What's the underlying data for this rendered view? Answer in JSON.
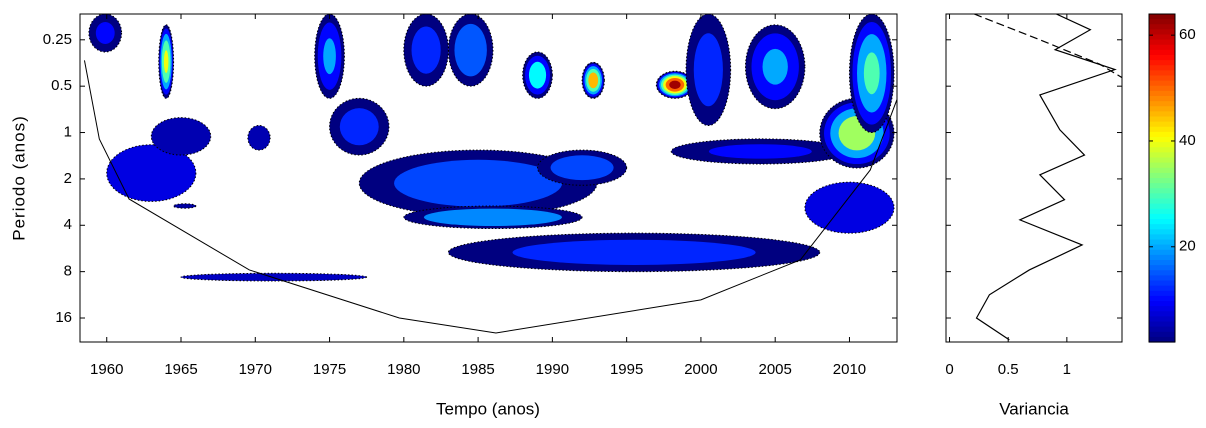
{
  "chart_data": [
    {
      "type": "wavelet",
      "xlabel": "Tempo (anos)",
      "ylabel": "Periodo (anos)",
      "xlim": [
        1958.2,
        2013.2
      ],
      "xticks": [
        1960,
        1965,
        1970,
        1975,
        1980,
        1985,
        1990,
        1995,
        2000,
        2005,
        2010
      ],
      "ylim": [
        0.17,
        22.9
      ],
      "yticks": [
        0.25,
        0.5,
        1,
        2,
        4,
        8,
        16
      ],
      "yscale": "log2",
      "colormap": "jet",
      "clim": [
        2,
        64
      ],
      "cticks": [
        20,
        40,
        60
      ],
      "levels": [
        2,
        10,
        20,
        30,
        40,
        50,
        60
      ],
      "patches": [
        {
          "x": [
            1960,
            1966
          ],
          "y": [
            1.2,
            2.8
          ],
          "value": 8
        },
        {
          "x": [
            1963,
            1967
          ],
          "y": [
            0.8,
            1.4
          ],
          "value": 5
        },
        {
          "x": [
            1969.5,
            1971
          ],
          "y": [
            0.9,
            1.3
          ],
          "value": 5
        },
        {
          "x": [
            1965,
            1977.5
          ],
          "y": [
            8.2,
            9.2
          ],
          "value": 6
        },
        {
          "x": [
            1964.5,
            1966
          ],
          "y": [
            2.9,
            3.1
          ],
          "value": 4
        },
        {
          "x": [
            1975,
            1979
          ],
          "y": [
            0.6,
            1.4
          ],
          "value": 12
        },
        {
          "x": [
            1977,
            1993
          ],
          "y": [
            1.3,
            3.5
          ],
          "value": 14
        },
        {
          "x": [
            1980,
            1992
          ],
          "y": [
            3,
            4.2
          ],
          "value": 18
        },
        {
          "x": [
            1983,
            2008
          ],
          "y": [
            4.5,
            8
          ],
          "value": 12
        },
        {
          "x": [
            1989,
            1995
          ],
          "y": [
            1.3,
            2.2
          ],
          "value": 14
        },
        {
          "x": [
            1998,
            2010
          ],
          "y": [
            1.1,
            1.6
          ],
          "value": 10
        },
        {
          "x": [
            2007,
            2013
          ],
          "y": [
            2.1,
            4.5
          ],
          "value": 8
        },
        {
          "x": [
            2008,
            2013
          ],
          "y": [
            0.6,
            1.7
          ],
          "value": 35
        },
        {
          "x": [
            1997,
            1999.5
          ],
          "y": [
            0.4,
            0.6
          ],
          "value": 62
        },
        {
          "x": [
            1992,
            1993.5
          ],
          "y": [
            0.35,
            0.6
          ],
          "value": 45
        },
        {
          "x": [
            1963.5,
            1964.5
          ],
          "y": [
            0.2,
            0.6
          ],
          "value": 40
        },
        {
          "x": [
            1974,
            1976
          ],
          "y": [
            0.17,
            0.6
          ],
          "value": 20
        },
        {
          "x": [
            1983,
            1986
          ],
          "y": [
            0.17,
            0.5
          ],
          "value": 15
        },
        {
          "x": [
            1988,
            1990
          ],
          "y": [
            0.3,
            0.6
          ],
          "value": 25
        },
        {
          "x": [
            2003,
            2007
          ],
          "y": [
            0.2,
            0.7
          ],
          "value": 20
        },
        {
          "x": [
            2010,
            2013
          ],
          "y": [
            0.17,
            1
          ],
          "value": 30
        },
        {
          "x": [
            1958.8,
            1961
          ],
          "y": [
            0.17,
            0.3
          ],
          "value": 10
        },
        {
          "x": [
            1980,
            1983
          ],
          "y": [
            0.17,
            0.5
          ],
          "value": 12
        },
        {
          "x": [
            1999,
            2002
          ],
          "y": [
            0.17,
            0.9
          ],
          "value": 12
        }
      ],
      "cone": {
        "x": [
          1958.5,
          1959.5,
          1961.5,
          1969.6,
          1979.7,
          1986.2,
          2000,
          2006.7,
          2011.4,
          2013.2
        ],
        "values": [
          0.34,
          1.1,
          2.7,
          7.8,
          16,
          20,
          12.2,
          6.7,
          1.75,
          0.61
        ]
      }
    },
    {
      "type": "line",
      "xlabel": "Variancia",
      "xlim": [
        -0.03,
        1.47
      ],
      "xticks": [
        0,
        0.5,
        1
      ],
      "ylim": [
        0.17,
        22.9
      ],
      "yticks": [
        0.25,
        0.5,
        1,
        2,
        4,
        8,
        16
      ],
      "yscale": "log2",
      "series": [
        {
          "color": "#000000",
          "dash": false,
          "values": [
            0.91,
            1.2,
            0.9,
            1.41,
            0.77,
            0.94,
            1.15,
            0.77,
            0.98,
            0.6,
            1.13,
            0.68,
            0.34,
            0.23,
            0.51
          ],
          "y": [
            0.17,
            0.215,
            0.29,
            0.39,
            0.57,
            0.96,
            1.4,
            1.88,
            2.73,
            3.69,
            5.37,
            7.8,
            11.3,
            16,
            22.2
          ]
        },
        {
          "color": "#000000",
          "dash": true,
          "values": [
            0.21,
            0.77,
            1.28,
            1.47
          ],
          "y": [
            0.17,
            0.25,
            0.36,
            0.44
          ]
        }
      ]
    }
  ]
}
